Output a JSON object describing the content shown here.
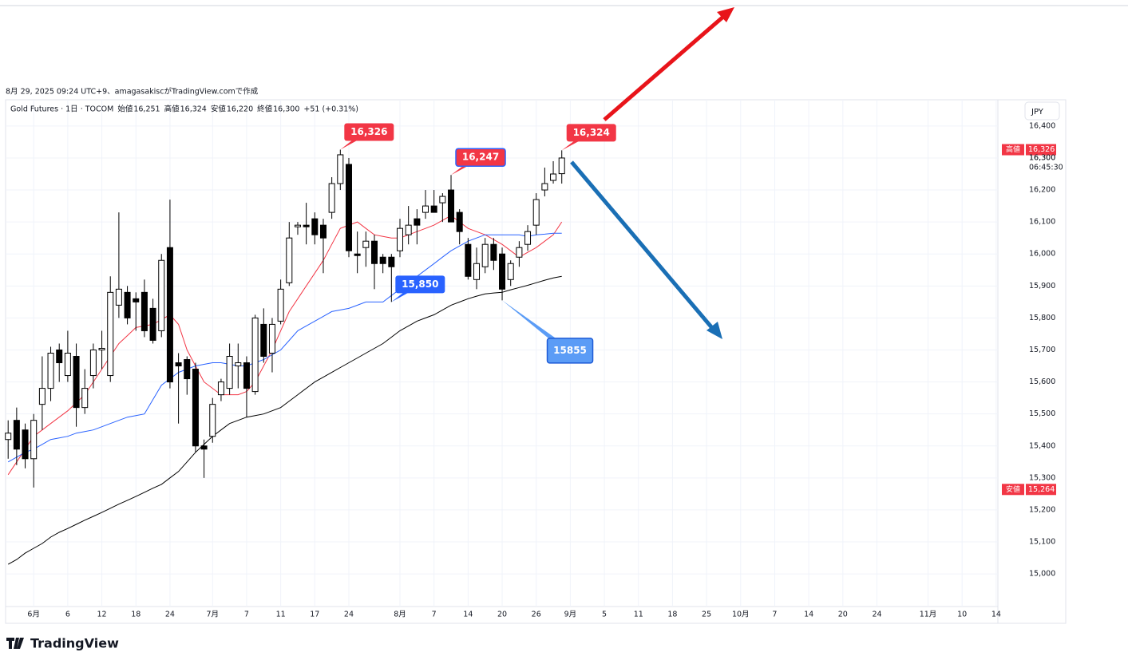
{
  "header": {
    "created": "8月 29, 2025 09:24 UTC+9、amagasakiscがTradingView.comで作成"
  },
  "footer": {
    "logo": "TradingView"
  },
  "chart_data": {
    "type": "candlestick",
    "title": "Gold Futures · 1日 · TOCOM",
    "ohlc_legend": [
      {
        "label": "始値",
        "value": "16,251"
      },
      {
        "label": "高値",
        "value": "16,324"
      },
      {
        "label": "安値",
        "value": "16,220"
      },
      {
        "label": "終値",
        "value": "16,300"
      }
    ],
    "change": "+51 (+0.31%)",
    "currency": "JPY",
    "up_color": "#ffffff",
    "down_color": "#000000",
    "open": [
      15420,
      15480,
      15450,
      15360,
      15530,
      15580,
      15700,
      15620,
      15680,
      15520,
      15620,
      15700,
      15620,
      15840,
      15880,
      15860,
      15880,
      15830,
      15760,
      16020,
      15660,
      15670,
      15640,
      15400,
      15430,
      15560,
      15580,
      15650,
      15660,
      15570,
      15780,
      15690,
      15790,
      15910,
      16085,
      16090,
      16110,
      16090,
      16130,
      16220,
      16280,
      16000,
      16020,
      16040,
      15990,
      15990,
      16010,
      16060,
      16110,
      16130,
      16150,
      16160,
      16200,
      16130,
      16030,
      15920,
      15960,
      16030,
      16000,
      15920,
      15990,
      16030,
      16090,
      16200,
      16230,
      16251
    ],
    "high": [
      15480,
      15520,
      15470,
      15500,
      15680,
      15710,
      15720,
      15760,
      15720,
      15640,
      15720,
      15760,
      15930,
      16130,
      15900,
      15880,
      15920,
      15860,
      16000,
      16170,
      15690,
      15680,
      15660,
      15420,
      15550,
      15610,
      15720,
      15720,
      15680,
      15810,
      15830,
      15800,
      15920,
      16100,
      16100,
      16160,
      16130,
      16110,
      16240,
      16326,
      16300,
      16070,
      16070,
      16060,
      16000,
      16000,
      16110,
      16150,
      16140,
      16200,
      16200,
      16190,
      16247,
      16140,
      16050,
      16020,
      16050,
      16050,
      16020,
      15980,
      16040,
      16090,
      16190,
      16270,
      16290,
      16324
    ],
    "low": [
      15360,
      15340,
      15330,
      15270,
      15450,
      15540,
      15600,
      15600,
      15460,
      15500,
      15580,
      15640,
      15600,
      15800,
      15780,
      15760,
      15740,
      15720,
      15740,
      15580,
      15470,
      15560,
      15380,
      15300,
      15410,
      15540,
      15560,
      15580,
      15490,
      15560,
      15660,
      15630,
      15780,
      15900,
      16060,
      16030,
      16030,
      15940,
      16110,
      16200,
      15990,
      15940,
      15960,
      15890,
      15940,
      15850,
      15990,
      16030,
      16030,
      16110,
      16130,
      16100,
      16100,
      16030,
      15920,
      15890,
      15940,
      15950,
      15855,
      15900,
      15960,
      16010,
      16060,
      16180,
      16220,
      16220
    ],
    "close": [
      15440,
      15390,
      15360,
      15480,
      15580,
      15690,
      15660,
      15690,
      15520,
      15580,
      15700,
      15705,
      15880,
      15890,
      15800,
      15850,
      15760,
      15730,
      15980,
      15600,
      15650,
      15610,
      15400,
      15390,
      15530,
      15600,
      15680,
      15660,
      15580,
      15800,
      15680,
      15780,
      15890,
      16050,
      16090,
      16085,
      16060,
      16050,
      16220,
      16310,
      16010,
      15995,
      16040,
      15970,
      15970,
      15960,
      16080,
      16090,
      16090,
      16150,
      16130,
      16180,
      16100,
      16070,
      15930,
      15970,
      16030,
      15980,
      15890,
      15970,
      16020,
      16070,
      16170,
      16220,
      16250,
      16300
    ],
    "moving_averages": [
      {
        "color": "#f23645",
        "values": [
          15310,
          15350,
          15390,
          15430,
          15450,
          15470,
          15490,
          15510,
          15535,
          15560,
          15600,
          15640,
          15680,
          15720,
          15745,
          15770,
          15775,
          15780,
          15795,
          15810,
          15780,
          15700,
          15650,
          15600,
          15580,
          15560,
          15560,
          15560,
          15570,
          15600,
          15650,
          15700,
          15760,
          15820,
          15860,
          15900,
          15940,
          15980,
          16030,
          16080,
          16090,
          16100,
          16080,
          16060,
          16055,
          16050,
          16050,
          16060,
          16070,
          16080,
          16090,
          16105,
          16120,
          16100,
          16080,
          16070,
          16060,
          16045,
          16030,
          16010,
          15990,
          16005,
          16020,
          16040,
          16060,
          16100
        ]
      },
      {
        "color": "#2962ff",
        "values": [
          15350,
          15365,
          15380,
          15390,
          15405,
          15420,
          15425,
          15430,
          15440,
          15445,
          15450,
          15460,
          15470,
          15480,
          15490,
          15495,
          15500,
          15545,
          15590,
          15610,
          15630,
          15640,
          15650,
          15655,
          15660,
          15660,
          15655,
          15650,
          15650,
          15660,
          15670,
          15685,
          15700,
          15730,
          15760,
          15775,
          15790,
          15805,
          15820,
          15825,
          15830,
          15840,
          15850,
          15850,
          15850,
          15870,
          15890,
          15910,
          15930,
          15950,
          15970,
          15990,
          16010,
          16025,
          16040,
          16050,
          16060,
          16060,
          16060,
          16060,
          16060,
          16055,
          16060,
          16062,
          16065,
          16065
        ]
      },
      {
        "color": "#000000",
        "values": [
          15030,
          15045,
          15065,
          15080,
          15095,
          15115,
          15130,
          15142,
          15155,
          15168,
          15180,
          15192,
          15205,
          15218,
          15230,
          15242,
          15255,
          15268,
          15280,
          15300,
          15320,
          15350,
          15380,
          15405,
          15430,
          15450,
          15470,
          15480,
          15490,
          15495,
          15500,
          15510,
          15520,
          15540,
          15560,
          15580,
          15600,
          15615,
          15630,
          15645,
          15660,
          15675,
          15690,
          15705,
          15720,
          15740,
          15760,
          15775,
          15790,
          15800,
          15810,
          15825,
          15840,
          15850,
          15860,
          15868,
          15875,
          15878,
          15880,
          15888,
          15895,
          15902,
          15910,
          15918,
          15925,
          15930
        ]
      }
    ],
    "xlim": [
      -0.3,
      116.2
    ],
    "xticks": [
      {
        "value": 3,
        "label": "6月"
      },
      {
        "value": 7,
        "label": "6"
      },
      {
        "value": 11,
        "label": "12"
      },
      {
        "value": 15,
        "label": "18"
      },
      {
        "value": 19,
        "label": "24"
      },
      {
        "value": 24,
        "label": "7月"
      },
      {
        "value": 28,
        "label": "7"
      },
      {
        "value": 32,
        "label": "11"
      },
      {
        "value": 36,
        "label": "17"
      },
      {
        "value": 40,
        "label": "24"
      },
      {
        "value": 46,
        "label": "8月"
      },
      {
        "value": 50,
        "label": "7"
      },
      {
        "value": 54,
        "label": "14"
      },
      {
        "value": 58,
        "label": "20"
      },
      {
        "value": 62,
        "label": "26"
      },
      {
        "value": 66,
        "label": "9月"
      },
      {
        "value": 70,
        "label": "5"
      },
      {
        "value": 74,
        "label": "11"
      },
      {
        "value": 78,
        "label": "18"
      },
      {
        "value": 82,
        "label": "25"
      },
      {
        "value": 86,
        "label": "10月"
      },
      {
        "value": 90,
        "label": "7"
      },
      {
        "value": 94,
        "label": "14"
      },
      {
        "value": 98,
        "label": "20"
      },
      {
        "value": 102,
        "label": "24"
      },
      {
        "value": 108,
        "label": "11月"
      },
      {
        "value": 112,
        "label": "10"
      },
      {
        "value": 116,
        "label": "14"
      }
    ],
    "ylim": [
      14898,
      16482
    ],
    "yticks": [
      {
        "value": 16400,
        "label": "16,400"
      },
      {
        "value": 16300,
        "label": "16,300"
      },
      {
        "value": 16200,
        "label": "16,200"
      },
      {
        "value": 16100,
        "label": "16,100"
      },
      {
        "value": 16000,
        "label": "16,000"
      },
      {
        "value": 15900,
        "label": "15,900"
      },
      {
        "value": 15800,
        "label": "15,800"
      },
      {
        "value": 15700,
        "label": "15,700"
      },
      {
        "value": 15600,
        "label": "15,600"
      },
      {
        "value": 15500,
        "label": "15,500"
      },
      {
        "value": 15400,
        "label": "15,400"
      },
      {
        "value": 15300,
        "label": "15,300"
      },
      {
        "value": 15200,
        "label": "15,200"
      },
      {
        "value": 15100,
        "label": "15,100"
      },
      {
        "value": 15000,
        "label": "15,000"
      }
    ],
    "grid": true,
    "price_tags": [
      {
        "name": "高値",
        "value": 16326,
        "label": "16,326",
        "color": "#f23645"
      },
      {
        "name": "安値",
        "value": 15264,
        "label": "15,264",
        "color": "#f23645"
      }
    ],
    "last_price": {
      "value": 16300,
      "label": "16,300",
      "countdown": "06:45:30"
    },
    "annotations": [
      {
        "index": 39,
        "value": 16326,
        "label": "16,326",
        "color": "#f23645"
      },
      {
        "index": 52,
        "value": 16247,
        "label": "16,247",
        "color": "#f23645"
      },
      {
        "index": 65,
        "value": 16324,
        "label": "16,324",
        "color": "#f23645"
      },
      {
        "index": 45,
        "value": 15850,
        "label": "15,850",
        "color": "#2962ff"
      },
      {
        "index": 58,
        "value": 15855,
        "color": "#5b9cf6"
      }
    ]
  }
}
